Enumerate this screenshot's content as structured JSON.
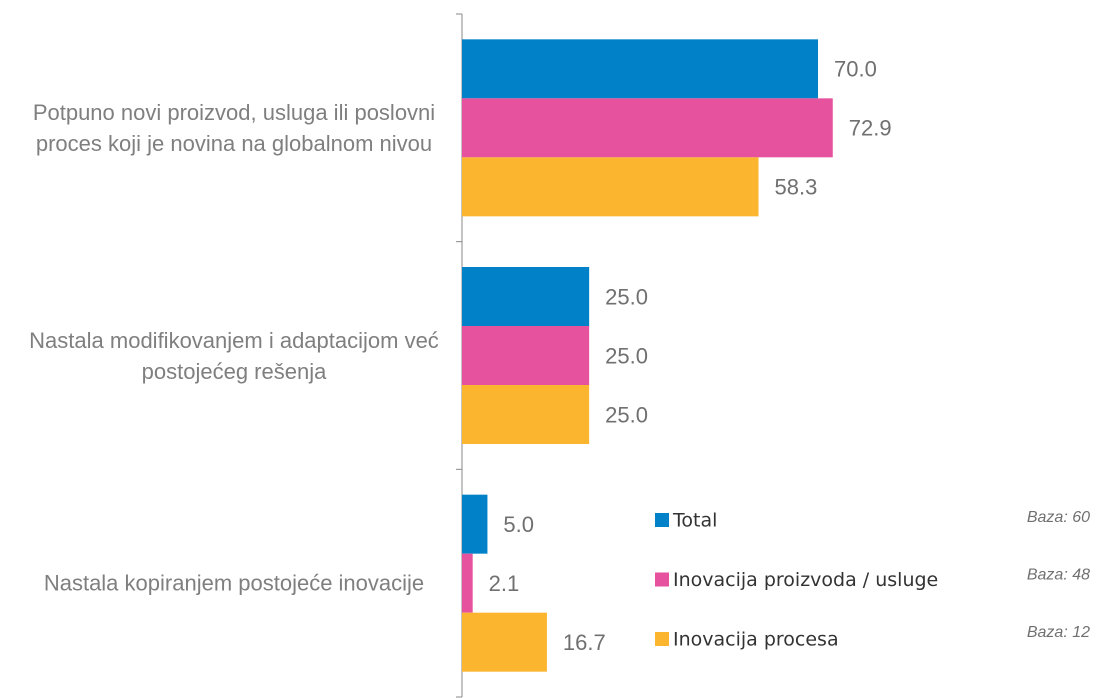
{
  "chart_data": {
    "type": "hbar",
    "categories": [
      "Potpuno novi proizvod, usluga ili poslovni proces koji je novina na globalnom nivou",
      "Nastala modifikovanjem i adaptacijom već postojećeg rešenja",
      "Nastala kopiranjem postojeće inovacije"
    ],
    "series": [
      {
        "name": "Total",
        "color": "#0081c8",
        "values": [
          70,
          25,
          5
        ],
        "value_labels": [
          "70.0",
          "25.0",
          "5.0"
        ],
        "note": "Baza: 60"
      },
      {
        "name": "Inovacija proizvoda / usluge",
        "color": "#e6529e",
        "values": [
          72.9,
          25,
          2.1
        ],
        "value_labels": [
          "72.9",
          "25.0",
          "2.1"
        ],
        "note": "Baza: 48"
      },
      {
        "name": "Inovacija procesa",
        "color": "#fbb52f",
        "values": [
          58.3,
          25,
          16.7
        ],
        "value_labels": [
          "58.3",
          "25.0",
          "16.7"
        ],
        "note": "Baza: 12"
      }
    ],
    "xlim": [
      0,
      100
    ]
  }
}
